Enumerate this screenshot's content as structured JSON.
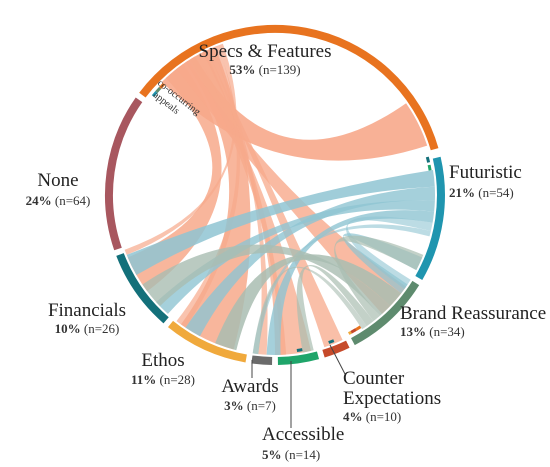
{
  "diagram": {
    "annotation": "co-occurring appeals",
    "categories": [
      {
        "key": "specs",
        "name": "Specs & Features",
        "percent": "53%",
        "n": "(n=139)",
        "color": "#E8731F"
      },
      {
        "key": "futuristic",
        "name": "Futuristic",
        "percent": "21%",
        "n": "(n=54)",
        "color": "#1F95AF"
      },
      {
        "key": "brand",
        "name": "Brand Reassurance",
        "percent": "13%",
        "n": "(n=34)",
        "color": "#5E8B6E"
      },
      {
        "key": "counter",
        "name": "Counter Expectations",
        "name_lines": [
          "Counter",
          "Expectations"
        ],
        "percent": "4%",
        "n": "(n=10)",
        "color": "#C64A2A"
      },
      {
        "key": "accessible",
        "name": "Accessible",
        "percent": "5%",
        "n": "(n=14)",
        "color": "#1FA56A"
      },
      {
        "key": "awards",
        "name": "Awards",
        "percent": "3%",
        "n": "(n=7)",
        "color": "#6B6B6B"
      },
      {
        "key": "ethos",
        "name": "Ethos",
        "percent": "11%",
        "n": "(n=28)",
        "color": "#F0A93C"
      },
      {
        "key": "financials",
        "name": "Financials",
        "percent": "10%",
        "n": "(n=26)",
        "color": "#13707A"
      },
      {
        "key": "none",
        "name": "None",
        "percent": "24%",
        "n": "(n=64)",
        "color": "#A8575F"
      }
    ],
    "ribbon_colors": {
      "specs": "#F7A98B",
      "futuristic": "#8FC4D2",
      "brand": "#A9BDB1"
    }
  }
}
